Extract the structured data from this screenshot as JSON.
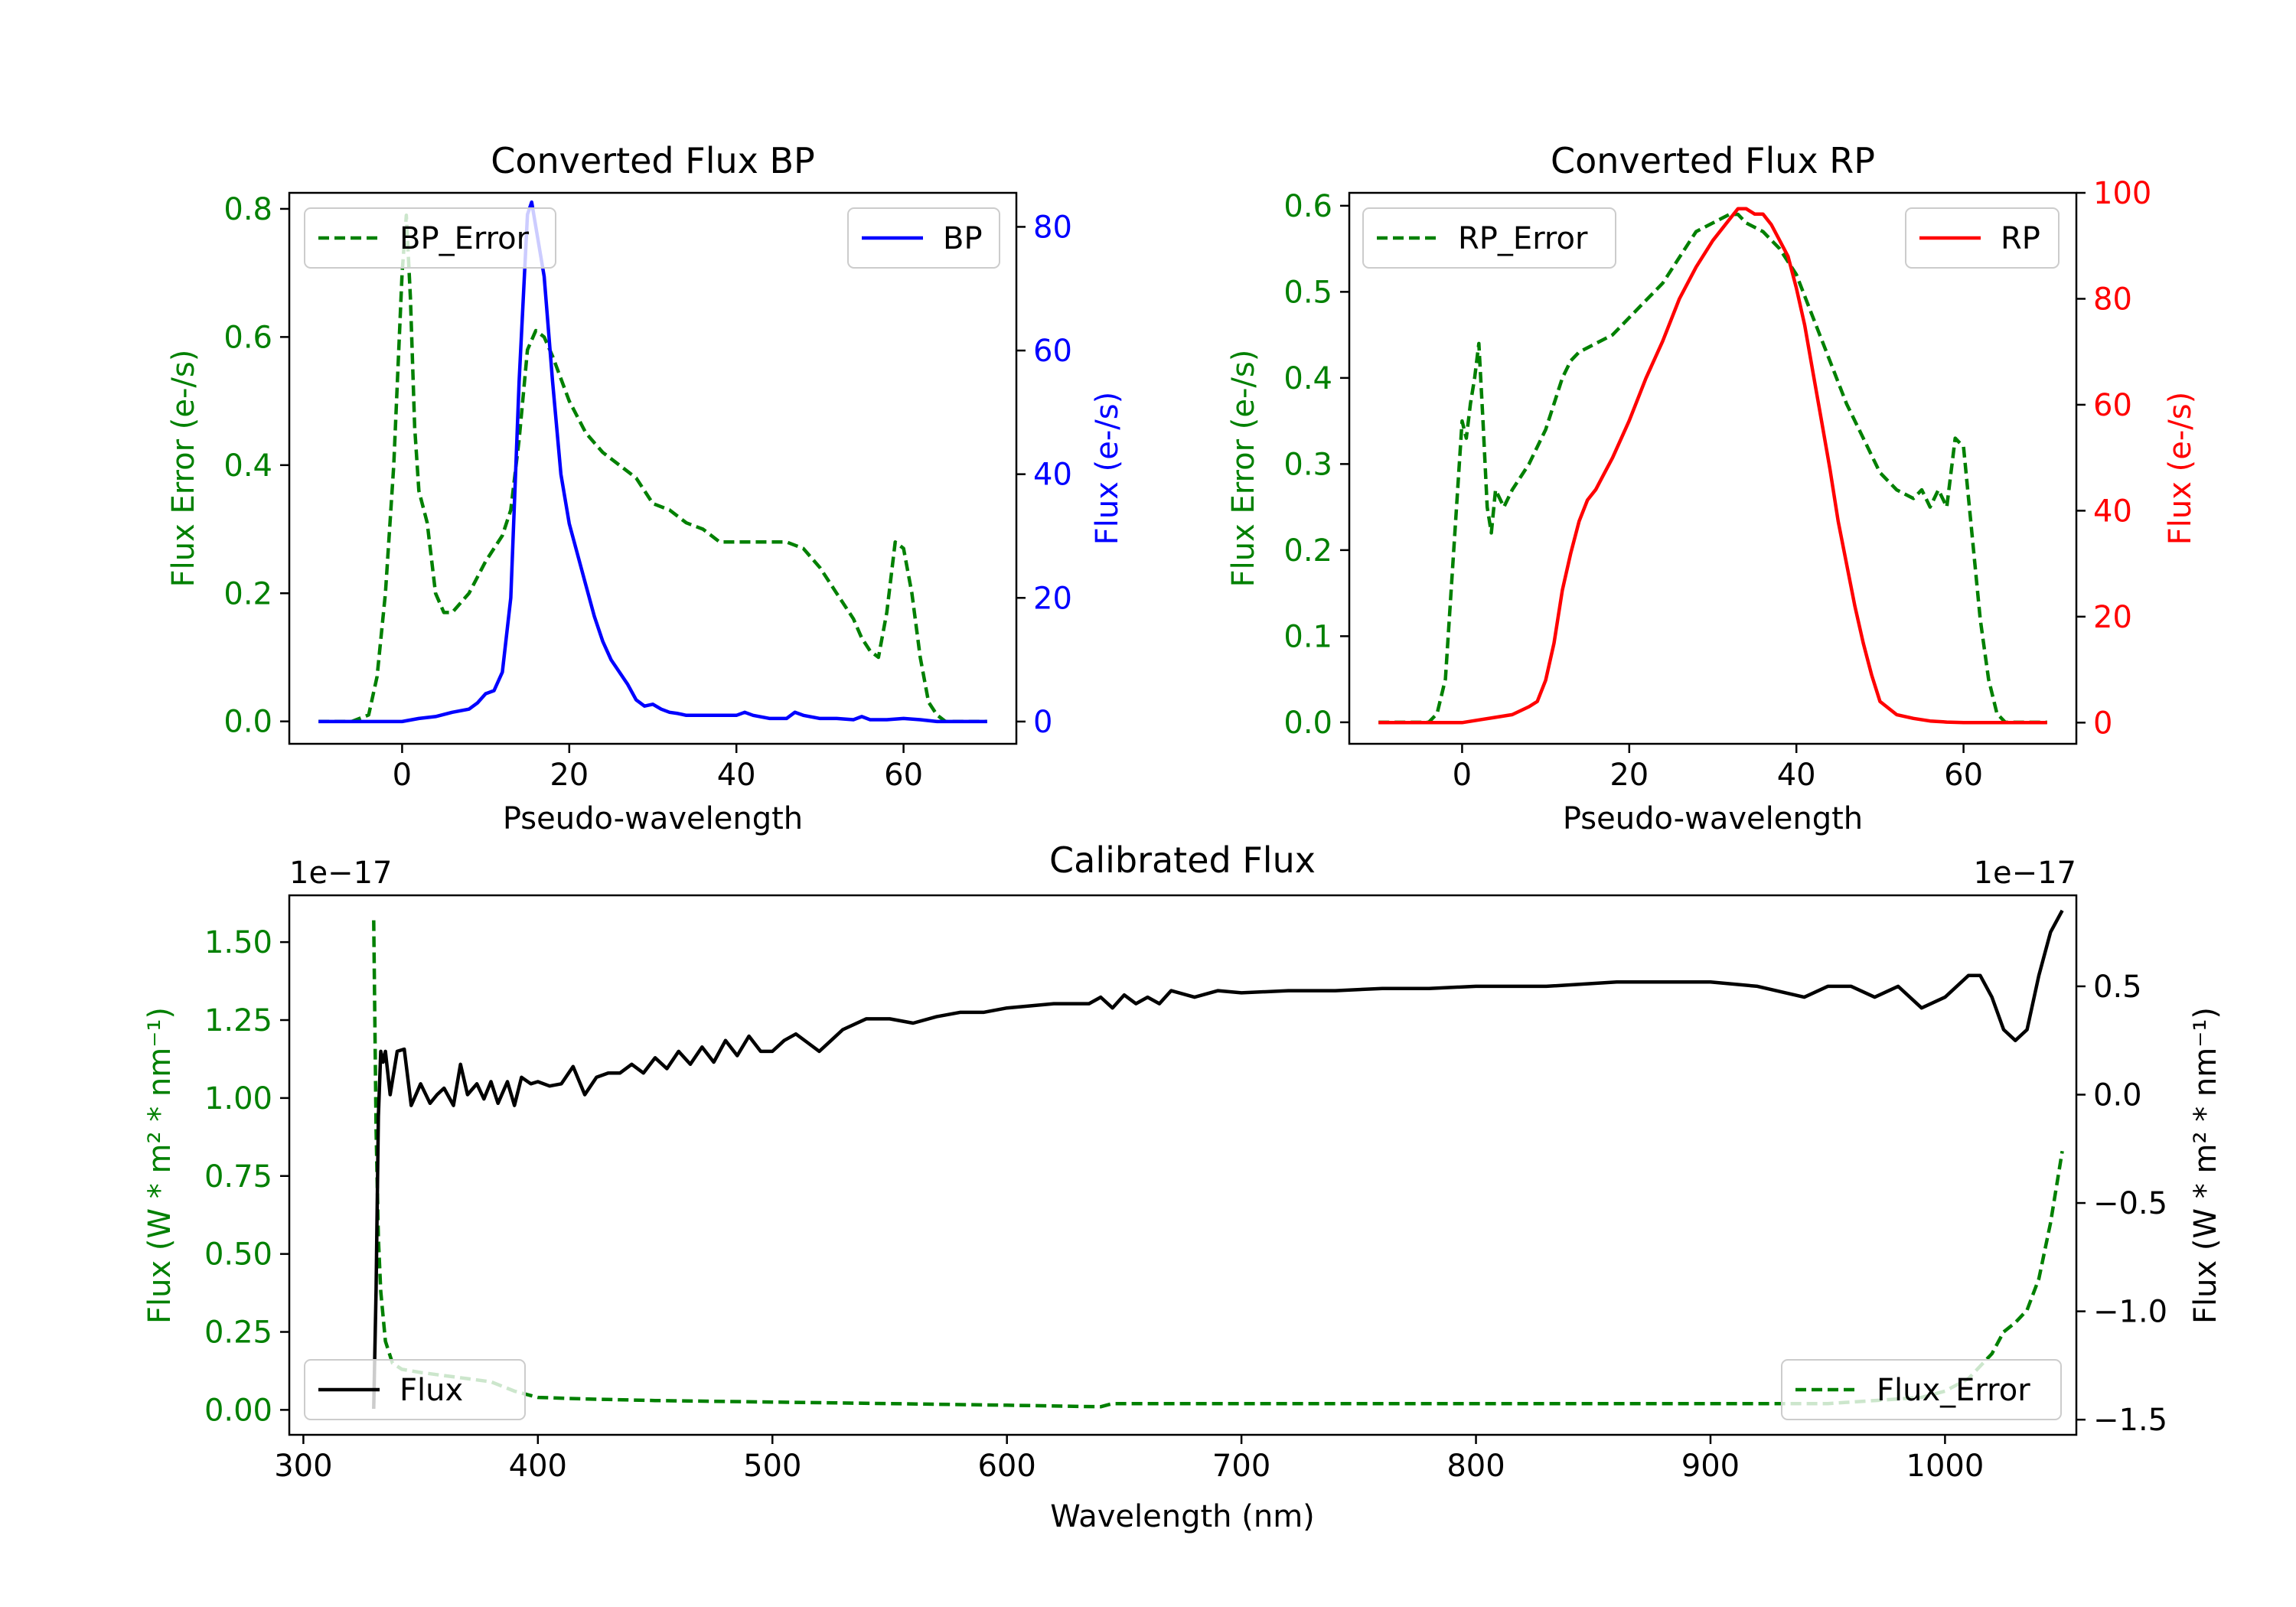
{
  "figure": {
    "background": "#ffffff"
  },
  "colors": {
    "green": "#008000",
    "blue": "#0000ff",
    "red": "#ff0000",
    "black": "#000000"
  },
  "chart_data": [
    {
      "id": "bp",
      "type": "line",
      "title": "Converted Flux BP",
      "xlabel": "Pseudo-wavelength",
      "ylabel_left": "Flux Error (e-/s)",
      "ylabel_right": "Flux (e-/s)",
      "xlim": [
        -13.5,
        73.5
      ],
      "ylim_left": [
        -0.035,
        0.825
      ],
      "ylim_right": [
        -3.6,
        85.5
      ],
      "xticks": [
        0,
        20,
        40,
        60
      ],
      "yticks_left": [
        0.0,
        0.2,
        0.4,
        0.6,
        0.8
      ],
      "yticks_left_labels": [
        "0.0",
        "0.2",
        "0.4",
        "0.6",
        "0.8"
      ],
      "yticks_right": [
        0,
        20,
        40,
        60,
        80
      ],
      "yticks_right_labels": [
        "0",
        "20",
        "40",
        "60",
        "80"
      ],
      "series": [
        {
          "name": "BP_Error",
          "axis": "left",
          "style": "dashed",
          "color": "#008000",
          "x": [
            -10,
            -6,
            -4,
            -3,
            -2,
            -1,
            0,
            0.5,
            1,
            1.5,
            2,
            3,
            4,
            5,
            6,
            8,
            10,
            12,
            13,
            14,
            15,
            16,
            17,
            18,
            20,
            22,
            24,
            26,
            28,
            30,
            32,
            34,
            36,
            38,
            40,
            42,
            44,
            46,
            48,
            50,
            52,
            54,
            55,
            56,
            57,
            58,
            59,
            60,
            61,
            62,
            63,
            64,
            65,
            66,
            68,
            70
          ],
          "y": [
            0.0,
            0.0,
            0.01,
            0.07,
            0.2,
            0.4,
            0.7,
            0.79,
            0.66,
            0.46,
            0.36,
            0.31,
            0.2,
            0.17,
            0.17,
            0.2,
            0.25,
            0.29,
            0.33,
            0.44,
            0.58,
            0.61,
            0.6,
            0.57,
            0.5,
            0.45,
            0.42,
            0.4,
            0.38,
            0.34,
            0.33,
            0.31,
            0.3,
            0.28,
            0.28,
            0.28,
            0.28,
            0.28,
            0.27,
            0.24,
            0.2,
            0.16,
            0.13,
            0.11,
            0.1,
            0.17,
            0.28,
            0.27,
            0.2,
            0.1,
            0.03,
            0.01,
            0.0,
            0.0,
            0.0,
            0.0
          ],
          "legend": "upper left"
        },
        {
          "name": "BP",
          "axis": "right",
          "style": "solid",
          "color": "#0000ff",
          "x": [
            -10,
            -5,
            0,
            2,
            4,
            6,
            8,
            9,
            10,
            11,
            12,
            13,
            14,
            15,
            15.5,
            16,
            17,
            18,
            19,
            20,
            21,
            22,
            23,
            24,
            25,
            26,
            27,
            28,
            29,
            30,
            31,
            32,
            33,
            34,
            35,
            36,
            38,
            40,
            41,
            42,
            44,
            46,
            47,
            48,
            50,
            52,
            54,
            55,
            56,
            58,
            60,
            62,
            64,
            66,
            68,
            70
          ],
          "y": [
            0,
            0,
            0,
            0.5,
            0.8,
            1.5,
            2,
            3,
            4.5,
            5,
            8,
            20,
            55,
            82,
            84,
            80,
            72,
            55,
            40,
            32,
            27,
            22,
            17,
            13,
            10,
            8,
            6,
            3.5,
            2.5,
            2.8,
            2,
            1.5,
            1.3,
            1,
            1,
            1,
            1,
            1,
            1.5,
            1,
            0.5,
            0.5,
            1.5,
            1,
            0.5,
            0.5,
            0.3,
            0.8,
            0.3,
            0.3,
            0.5,
            0.3,
            0,
            0,
            0,
            0
          ],
          "legend": "upper right"
        }
      ]
    },
    {
      "id": "rp",
      "type": "line",
      "title": "Converted Flux RP",
      "xlabel": "Pseudo-wavelength",
      "ylabel_left": "Flux Error (e-/s)",
      "ylabel_right": "Flux (e-/s)",
      "xlim": [
        -13.5,
        73.5
      ],
      "ylim_left": [
        -0.025,
        0.615
      ],
      "ylim_right": [
        -4,
        100
      ],
      "xticks": [
        0,
        20,
        40,
        60
      ],
      "yticks_left": [
        0.0,
        0.1,
        0.2,
        0.3,
        0.4,
        0.5,
        0.6
      ],
      "yticks_left_labels": [
        "0.0",
        "0.1",
        "0.2",
        "0.3",
        "0.4",
        "0.5",
        "0.6"
      ],
      "yticks_right": [
        0,
        20,
        40,
        60,
        80,
        100
      ],
      "yticks_right_labels": [
        "0",
        "20",
        "40",
        "60",
        "80",
        "100"
      ],
      "series": [
        {
          "name": "RP_Error",
          "axis": "left",
          "style": "dashed",
          "color": "#008000",
          "x": [
            -10,
            -5,
            -4,
            -3,
            -2,
            -1,
            0,
            0.5,
            1,
            1.5,
            2,
            2.5,
            3,
            3.5,
            4,
            5,
            6,
            8,
            10,
            12,
            13,
            14,
            16,
            18,
            20,
            22,
            24,
            26,
            28,
            30,
            32,
            33,
            34,
            36,
            38,
            40,
            42,
            44,
            46,
            48,
            50,
            52,
            54,
            55,
            56,
            57,
            58,
            59,
            60,
            61,
            62,
            63,
            64,
            65,
            68,
            70
          ],
          "y": [
            0.0,
            0.0,
            0.0,
            0.01,
            0.05,
            0.2,
            0.35,
            0.33,
            0.37,
            0.4,
            0.44,
            0.35,
            0.25,
            0.22,
            0.27,
            0.25,
            0.27,
            0.3,
            0.34,
            0.4,
            0.42,
            0.43,
            0.44,
            0.45,
            0.47,
            0.49,
            0.51,
            0.54,
            0.57,
            0.58,
            0.59,
            0.59,
            0.58,
            0.57,
            0.55,
            0.52,
            0.47,
            0.42,
            0.37,
            0.33,
            0.29,
            0.27,
            0.26,
            0.27,
            0.25,
            0.27,
            0.25,
            0.33,
            0.32,
            0.22,
            0.12,
            0.05,
            0.01,
            0.0,
            0.0,
            0.0
          ],
          "legend": "upper left"
        },
        {
          "name": "RP",
          "axis": "right",
          "style": "solid",
          "color": "#ff0000",
          "x": [
            -10,
            -5,
            0,
            2,
            4,
            6,
            8,
            9,
            10,
            11,
            12,
            13,
            14,
            15,
            16,
            17,
            18,
            20,
            22,
            24,
            26,
            28,
            30,
            32,
            33,
            34,
            35,
            36,
            37,
            38,
            39,
            40,
            41,
            42,
            43,
            44,
            45,
            46,
            47,
            48,
            49,
            50,
            52,
            54,
            56,
            58,
            60,
            65,
            70
          ],
          "y": [
            0,
            0,
            0,
            0.5,
            1,
            1.5,
            3,
            4,
            8,
            15,
            25,
            32,
            38,
            42,
            44,
            47,
            50,
            57,
            65,
            72,
            80,
            86,
            91,
            95,
            97,
            97,
            96,
            96,
            94,
            91,
            88,
            82,
            75,
            66,
            57,
            48,
            38,
            30,
            22,
            15,
            9,
            4,
            1.5,
            0.8,
            0.3,
            0.1,
            0,
            0,
            0
          ],
          "legend": "upper right"
        }
      ]
    },
    {
      "id": "calibrated",
      "type": "line",
      "title": "Calibrated Flux",
      "xlabel": "Wavelength (nm)",
      "ylabel_left": "Flux (W * m² * nm⁻¹)",
      "ylabel_right": "Flux (W * m² * nm⁻¹)",
      "offset_left": "1e−17",
      "offset_right": "1e−17",
      "xlim": [
        294,
        1056
      ],
      "ylim_left": [
        -0.08,
        1.65
      ],
      "ylim_right": [
        -1.57,
        0.92
      ],
      "xticks": [
        300,
        400,
        500,
        600,
        700,
        800,
        900,
        1000
      ],
      "yticks_left": [
        0.0,
        0.25,
        0.5,
        0.75,
        1.0,
        1.25,
        1.5
      ],
      "yticks_left_labels": [
        "0.00",
        "0.25",
        "0.50",
        "0.75",
        "1.00",
        "1.25",
        "1.50"
      ],
      "yticks_right": [
        -1.5,
        -1.0,
        -0.5,
        0.0,
        0.5
      ],
      "yticks_right_labels": [
        "−1.5",
        "−1.0",
        "−0.5",
        "0.0",
        "0.5"
      ],
      "series": [
        {
          "name": "Flux_Error",
          "axis": "left",
          "style": "dashed",
          "color": "#008000",
          "x": [
            330,
            331,
            332,
            333,
            335,
            338,
            342,
            350,
            360,
            370,
            380,
            390,
            400,
            420,
            450,
            500,
            550,
            600,
            640,
            645,
            700,
            800,
            900,
            950,
            970,
            990,
            1000,
            1010,
            1020,
            1025,
            1030,
            1035,
            1040,
            1045,
            1050
          ],
          "y": [
            1.57,
            0.9,
            0.55,
            0.38,
            0.22,
            0.15,
            0.13,
            0.12,
            0.11,
            0.1,
            0.09,
            0.06,
            0.04,
            0.035,
            0.03,
            0.025,
            0.02,
            0.015,
            0.01,
            0.02,
            0.02,
            0.02,
            0.02,
            0.02,
            0.03,
            0.04,
            0.06,
            0.1,
            0.18,
            0.25,
            0.28,
            0.32,
            0.42,
            0.6,
            0.83
          ],
          "legend": "lower right"
        },
        {
          "name": "Flux",
          "axis": "right",
          "style": "solid",
          "color": "#000000",
          "x": [
            330,
            331,
            332,
            333,
            334,
            335,
            337,
            340,
            343,
            346,
            350,
            354,
            357,
            360,
            364,
            367,
            370,
            374,
            377,
            380,
            383,
            387,
            390,
            393,
            397,
            400,
            405,
            410,
            415,
            420,
            425,
            430,
            435,
            440,
            445,
            450,
            455,
            460,
            465,
            470,
            475,
            480,
            485,
            490,
            495,
            500,
            505,
            510,
            515,
            520,
            525,
            530,
            540,
            550,
            560,
            570,
            580,
            590,
            600,
            620,
            635,
            640,
            645,
            650,
            655,
            660,
            665,
            670,
            680,
            690,
            700,
            720,
            740,
            760,
            780,
            800,
            830,
            860,
            880,
            900,
            920,
            940,
            950,
            960,
            970,
            980,
            990,
            1000,
            1010,
            1015,
            1020,
            1025,
            1030,
            1035,
            1040,
            1045,
            1050
          ],
          "y": [
            -1.45,
            -0.9,
            -0.1,
            0.2,
            0.15,
            0.2,
            0.0,
            0.2,
            0.21,
            -0.05,
            0.05,
            -0.04,
            0.0,
            0.03,
            -0.05,
            0.14,
            0.0,
            0.05,
            -0.02,
            0.06,
            -0.04,
            0.06,
            -0.05,
            0.08,
            0.05,
            0.06,
            0.04,
            0.05,
            0.13,
            0.0,
            0.08,
            0.1,
            0.1,
            0.14,
            0.1,
            0.17,
            0.12,
            0.2,
            0.14,
            0.22,
            0.15,
            0.25,
            0.18,
            0.27,
            0.2,
            0.2,
            0.25,
            0.28,
            0.24,
            0.2,
            0.25,
            0.3,
            0.35,
            0.35,
            0.33,
            0.36,
            0.38,
            0.38,
            0.4,
            0.42,
            0.42,
            0.45,
            0.4,
            0.46,
            0.42,
            0.45,
            0.42,
            0.48,
            0.45,
            0.48,
            0.47,
            0.48,
            0.48,
            0.49,
            0.49,
            0.5,
            0.5,
            0.52,
            0.52,
            0.52,
            0.5,
            0.45,
            0.5,
            0.5,
            0.45,
            0.5,
            0.4,
            0.45,
            0.55,
            0.55,
            0.45,
            0.3,
            0.25,
            0.3,
            0.55,
            0.75,
            0.85
          ],
          "legend": "lower left"
        }
      ]
    }
  ]
}
